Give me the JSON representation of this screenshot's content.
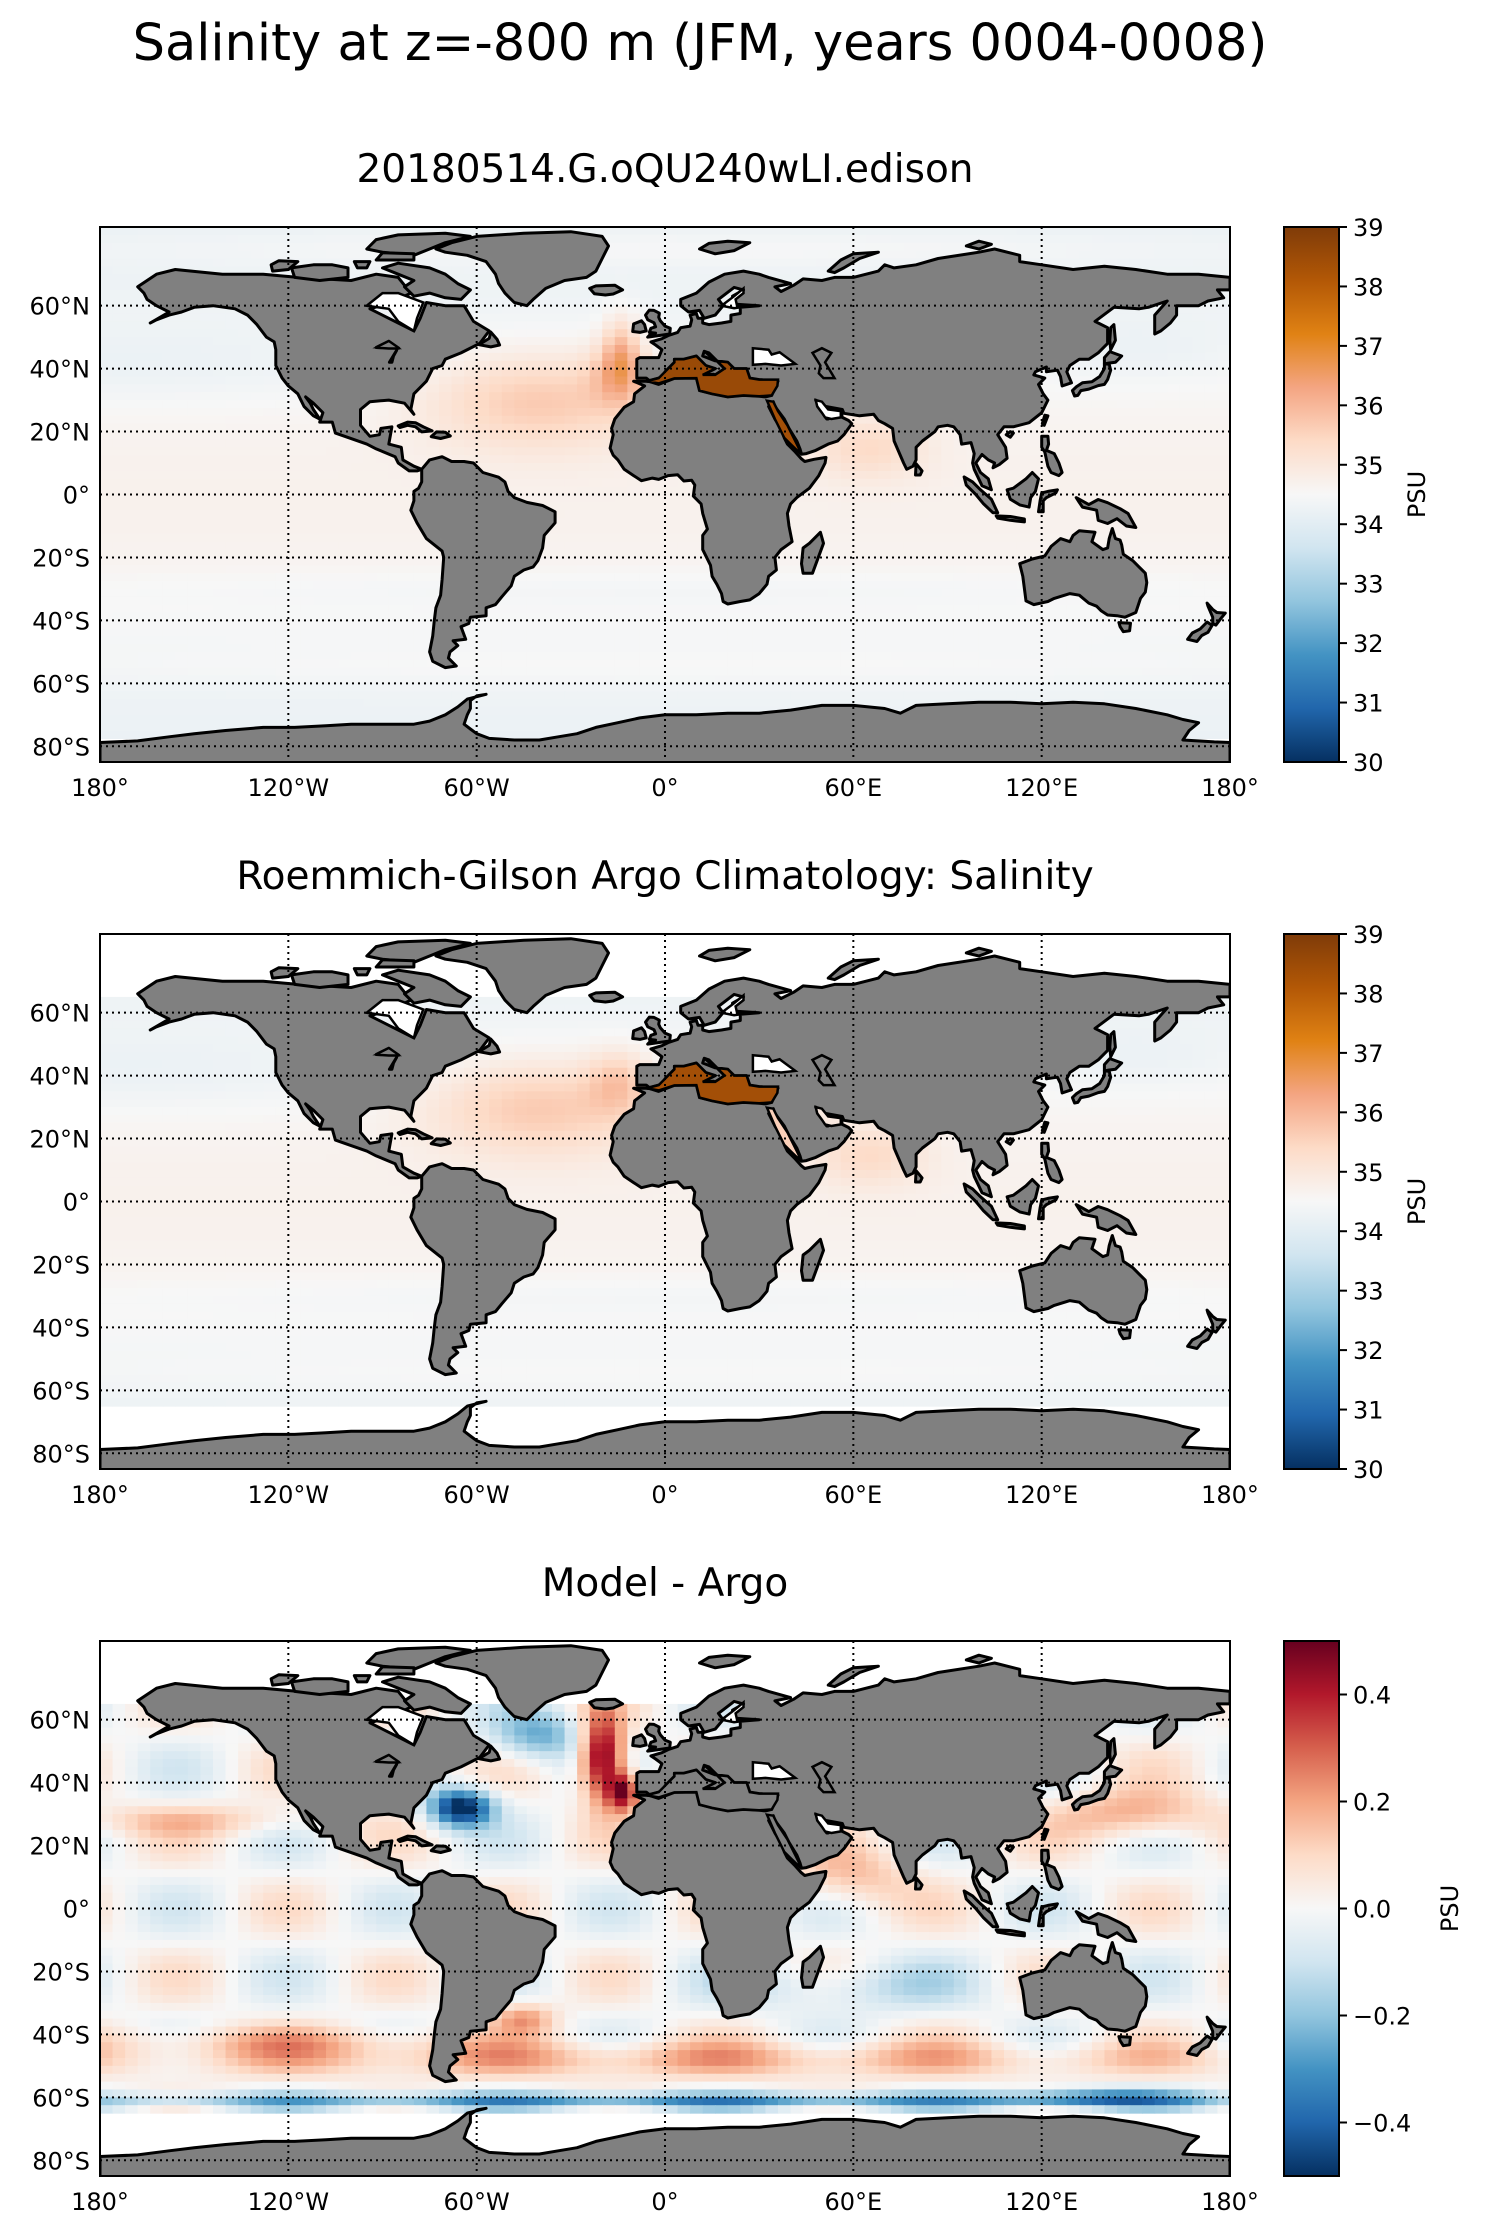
{
  "figure": {
    "title": "Salinity at z=-800 m (JFM, years 0004-0008)",
    "colors": {
      "land": "#808080",
      "coast": "#000000",
      "missing": "#ffffff",
      "frame": "#000000"
    }
  },
  "chart_data": [
    {
      "type": "heatmap",
      "title": "20180514.G.oQU240wLI.edison",
      "projection": "PlateCarree",
      "xlim": [
        -180,
        180
      ],
      "ylim": [
        -85,
        85
      ],
      "x_ticks": [
        -180,
        -120,
        -60,
        0,
        60,
        120,
        180
      ],
      "x_tick_labels": [
        "180°",
        "120°W",
        "60°W",
        "0°",
        "60°E",
        "120°E",
        "180°"
      ],
      "y_ticks": [
        60,
        40,
        20,
        0,
        -20,
        -40,
        -60,
        -80
      ],
      "y_tick_labels": [
        "60°N",
        "40°N",
        "20°N",
        "0°",
        "20°S",
        "40°S",
        "60°S",
        "80°S"
      ],
      "grid": true,
      "colorbar": {
        "label": "PSU",
        "colormap": "PuOr_r",
        "range": [
          30,
          39
        ],
        "ticks": [
          30,
          31,
          32,
          33,
          34,
          35,
          36,
          37,
          38,
          39
        ],
        "tick_labels": [
          "30",
          "31",
          "32",
          "33",
          "34",
          "35",
          "36",
          "37",
          "38",
          "39"
        ],
        "stops": [
          "#053061",
          "#2166ac",
          "#4393c3",
          "#92c5de",
          "#d1e5f0",
          "#f7f7f7",
          "#fddbc7",
          "#f4a582",
          "#e08214",
          "#b35806",
          "#7f3b08"
        ]
      },
      "fields": {
        "background_value": 34.6,
        "features": [
          {
            "region": "Mediterranean Sea",
            "value": 38.6
          },
          {
            "region": "Red Sea",
            "value": 38.4
          },
          {
            "region": "North Atlantic subtropics",
            "value": 35.6
          },
          {
            "region": "Mediterranean outflow west of Iberia",
            "value": 36.4
          },
          {
            "region": "Arabian Sea",
            "value": 35.2
          },
          {
            "region": "North Pacific",
            "value": 34.3
          },
          {
            "region": "Southern Ocean",
            "value": 34.4
          },
          {
            "region": "Arctic",
            "value": 34.9
          }
        ],
        "missing_bands": [
          {
            "lat_from": -85,
            "lat_to": -78
          }
        ]
      }
    },
    {
      "type": "heatmap",
      "title": "Roemmich-Gilson Argo Climatology: Salinity",
      "projection": "PlateCarree",
      "xlim": [
        -180,
        180
      ],
      "ylim": [
        -85,
        85
      ],
      "x_ticks": [
        -180,
        -120,
        -60,
        0,
        60,
        120,
        180
      ],
      "x_tick_labels": [
        "180°",
        "120°W",
        "60°W",
        "0°",
        "60°E",
        "120°E",
        "180°"
      ],
      "y_ticks": [
        60,
        40,
        20,
        0,
        -20,
        -40,
        -60,
        -80
      ],
      "y_tick_labels": [
        "60°N",
        "40°N",
        "20°N",
        "0°",
        "20°S",
        "40°S",
        "60°S",
        "80°S"
      ],
      "grid": true,
      "colorbar": {
        "label": "PSU",
        "colormap": "PuOr_r",
        "range": [
          30,
          39
        ],
        "ticks": [
          30,
          31,
          32,
          33,
          34,
          35,
          36,
          37,
          38,
          39
        ],
        "tick_labels": [
          "30",
          "31",
          "32",
          "33",
          "34",
          "35",
          "36",
          "37",
          "38",
          "39"
        ],
        "stops": [
          "#053061",
          "#2166ac",
          "#4393c3",
          "#92c5de",
          "#d1e5f0",
          "#f7f7f7",
          "#fddbc7",
          "#f4a582",
          "#e08214",
          "#b35806",
          "#7f3b08"
        ]
      },
      "fields": {
        "background_value": 34.6,
        "features": [
          {
            "region": "Mediterranean Sea",
            "value": 38.4
          },
          {
            "region": "North Atlantic subtropics",
            "value": 35.6
          },
          {
            "region": "Arabian Sea",
            "value": 35.4
          },
          {
            "region": "North Pacific",
            "value": 34.3
          },
          {
            "region": "Southern Ocean",
            "value": 34.4
          }
        ],
        "missing_bands": [
          {
            "lat_from": -85,
            "lat_to": -65
          },
          {
            "lat_from": 65,
            "lat_to": 85
          }
        ]
      }
    },
    {
      "type": "heatmap",
      "title": "Model - Argo",
      "projection": "PlateCarree",
      "xlim": [
        -180,
        180
      ],
      "ylim": [
        -85,
        85
      ],
      "x_ticks": [
        -180,
        -120,
        -60,
        0,
        60,
        120,
        180
      ],
      "x_tick_labels": [
        "180°",
        "120°W",
        "60°W",
        "0°",
        "60°E",
        "120°E",
        "180°"
      ],
      "y_ticks": [
        60,
        40,
        20,
        0,
        -20,
        -40,
        -60,
        -80
      ],
      "y_tick_labels": [
        "60°N",
        "40°N",
        "20°N",
        "0°",
        "20°S",
        "40°S",
        "60°S",
        "80°S"
      ],
      "grid": true,
      "colorbar": {
        "label": "PSU",
        "colormap": "RdBu_r",
        "range": [
          -0.5,
          0.5
        ],
        "ticks": [
          -0.4,
          -0.2,
          0.0,
          0.2,
          0.4
        ],
        "tick_labels": [
          "−0.4",
          "−0.2",
          "0.0",
          "0.2",
          "0.4"
        ],
        "stops": [
          "#053061",
          "#2166ac",
          "#4393c3",
          "#92c5de",
          "#d1e5f0",
          "#f7f7f7",
          "#fddbc7",
          "#f4a582",
          "#d6604d",
          "#b2182b",
          "#67001f"
        ]
      },
      "fields": {
        "background_value": 0.0,
        "features": [
          {
            "region": "Northeast Atlantic (Mediterranean outflow)",
            "value": 0.5
          },
          {
            "region": "Gulf Stream region",
            "value": -0.5
          },
          {
            "region": "Southern Ocean 40-55°S",
            "value": 0.15
          },
          {
            "region": "Southern Ocean ~60°S",
            "value": -0.25
          },
          {
            "region": "Kuroshio extension",
            "value": 0.18
          },
          {
            "region": "Subpolar North Atlantic",
            "value": -0.1
          }
        ],
        "missing_bands": [
          {
            "lat_from": -85,
            "lat_to": -65
          },
          {
            "lat_from": 65,
            "lat_to": 85
          }
        ]
      }
    }
  ]
}
